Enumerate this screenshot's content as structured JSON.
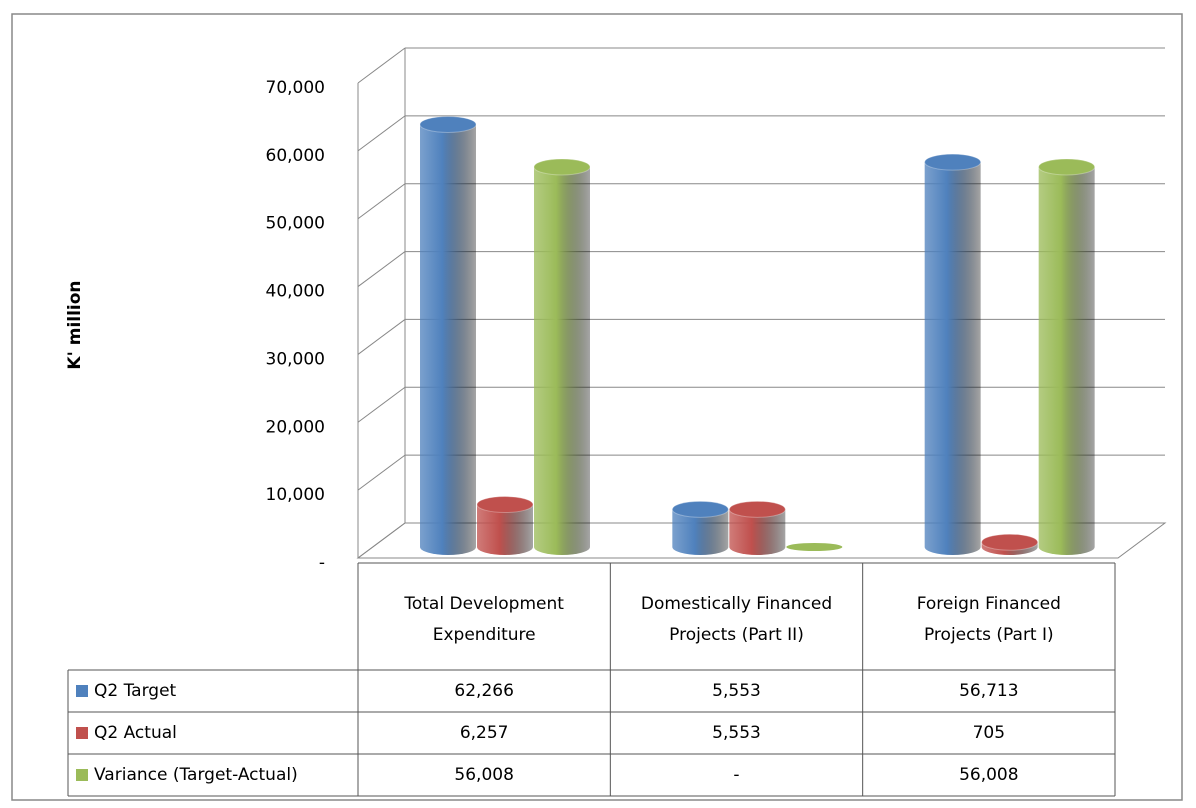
{
  "chart_data": {
    "type": "bar3d",
    "y_label": "K' million",
    "categories": [
      "Total Development Expenditure",
      "Domestically Financed Projects (Part II)",
      "Foreign Financed Projects (Part I)"
    ],
    "series": [
      {
        "name": "Q2 Target",
        "color": "#4f81bd",
        "values": [
          62266,
          5553,
          56713
        ],
        "value_labels": [
          "62,266",
          "5,553",
          "56,713"
        ]
      },
      {
        "name": "Q2 Actual",
        "color": "#c0504d",
        "values": [
          6257,
          5553,
          705
        ],
        "value_labels": [
          "6,257",
          "5,553",
          "705"
        ]
      },
      {
        "name": "Variance (Target-Actual)",
        "color": "#9bbb59",
        "values": [
          56008,
          0,
          56008
        ],
        "value_labels": [
          "56,008",
          "-",
          "56,008"
        ]
      }
    ],
    "ylim": [
      0,
      70000
    ],
    "yticks": [
      {
        "value": 0,
        "label": "-"
      },
      {
        "value": 10000,
        "label": "10,000"
      },
      {
        "value": 20000,
        "label": "20,000"
      },
      {
        "value": 30000,
        "label": "30,000"
      },
      {
        "value": 40000,
        "label": "40,000"
      },
      {
        "value": 50000,
        "label": "50,000"
      },
      {
        "value": 60000,
        "label": "60,000"
      },
      {
        "value": 70000,
        "label": "70,000"
      }
    ],
    "grid": true
  }
}
